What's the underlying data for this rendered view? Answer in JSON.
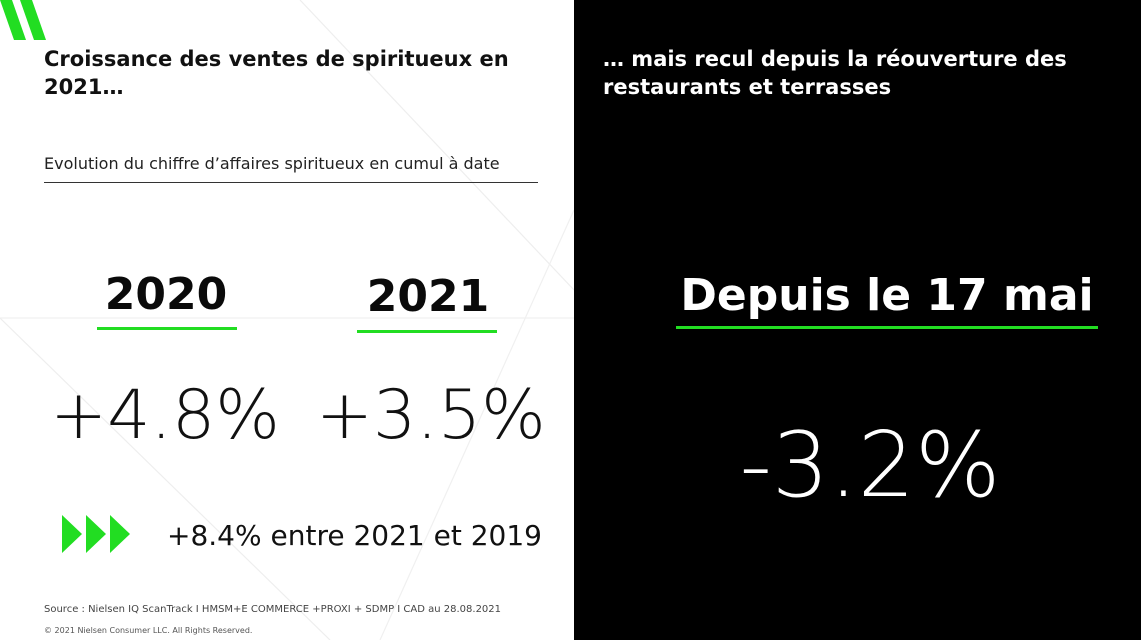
{
  "left": {
    "title": "Croissance des ventes de spiritueux en 2021…",
    "subtitle": "Evolution du chiffre d’affaires spiritueux en cumul à date",
    "year_2020": "2020",
    "year_2021": "2021",
    "value_2020": "+4.8%",
    "value_2021": "+3.5%",
    "note": "+8.4% entre 2021 et 2019",
    "source": "Source : Nielsen IQ ScanTrack I HMSM+E COMMERCE +PROXI + SDMP I CAD au 28.08.2021",
    "copyright": "© 2021 Nielsen Consumer LLC. All Rights Reserved."
  },
  "right": {
    "title": "… mais recul depuis la réouverture des restaurants et terrasses",
    "since_label": "Depuis le 17 mai",
    "value": "-3.2%"
  },
  "icons": {
    "logo": "nielsen-logo-icon",
    "arrows": "triple-play-arrows-icon"
  },
  "colors": {
    "accent_green": "#22dd22",
    "left_background": "#ffffff",
    "right_background": "#000000",
    "text_dark": "#111111",
    "text_light": "#ffffff"
  }
}
